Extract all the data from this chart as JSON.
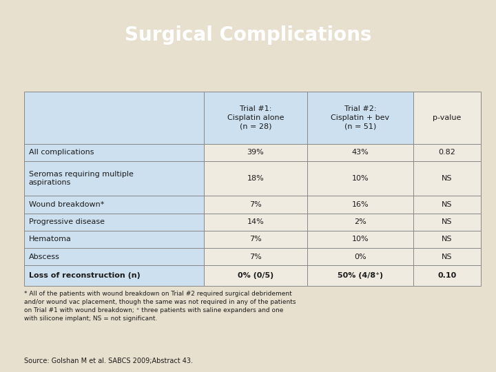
{
  "title": "Surgical Complications",
  "title_bg": "#0e2f5a",
  "title_color": "#ffffff",
  "bg_color": "#e8e0cf",
  "table_bg": "#f0ebe0",
  "header_bg": "#cce0f0",
  "col_headers": [
    "Trial #1:\nCisplatin alone\n(n = 28)",
    "Trial #2:\nCisplatin + bev\n(n = 51)",
    "p-value"
  ],
  "rows": [
    [
      "All complications",
      "39%",
      "43%",
      "0.82"
    ],
    [
      "Seromas requiring multiple\naspirations",
      "18%",
      "10%",
      "NS"
    ],
    [
      "Wound breakdown*",
      "7%",
      "16%",
      "NS"
    ],
    [
      "Progressive disease",
      "14%",
      "2%",
      "NS"
    ],
    [
      "Hematoma",
      "7%",
      "10%",
      "NS"
    ],
    [
      "Abscess",
      "7%",
      "0%",
      "NS"
    ],
    [
      "Loss of reconstruction (n)",
      "0% (0/5)",
      "50% (4/8⁺)",
      "0.10"
    ]
  ],
  "footnote": "* All of the patients with wound breakdown on Trial #2 required surgical debridement\nand/or wound vac placement, though the same was not required in any of the patients\non Trial #1 with wound breakdown; ⁺ three patients with saline expanders and one\nwith silicone implant; NS = not significant.",
  "source": "Source: Golshan M et al. SABCS 2009;Abstract 43.",
  "border_color": "#888888",
  "text_color": "#1a1a1a",
  "title_fontsize": 20,
  "header_fontsize": 8,
  "body_fontsize": 8,
  "footnote_fontsize": 6.5,
  "source_fontsize": 7
}
